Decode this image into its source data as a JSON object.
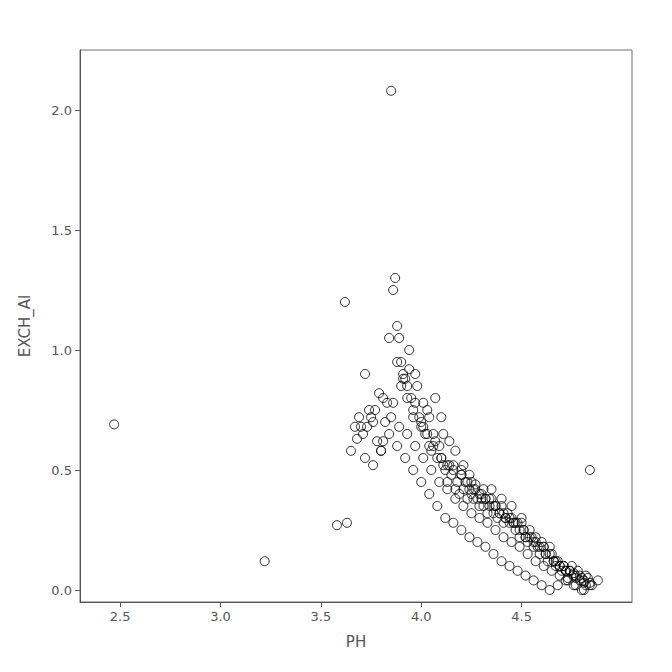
{
  "chart_data": {
    "type": "scatter",
    "xlabel": "PH",
    "ylabel": "EXCH_Al",
    "xlim": [
      2.3,
      5.05
    ],
    "ylim": [
      -0.05,
      2.25
    ],
    "xticks": [
      2.5,
      {
        "value": 3.0,
        "label": "3.0"
      },
      3.5,
      {
        "value": 4.0,
        "label": "4.0"
      },
      4.5
    ],
    "yticks": [
      {
        "value": 0.0,
        "label": "0.0"
      },
      0.5,
      {
        "value": 1.0,
        "label": "1.0"
      },
      1.5,
      {
        "value": 2.0,
        "label": "2.0"
      }
    ],
    "grid": false,
    "color": "black",
    "marker": "circle",
    "x": [
      2.47,
      3.22,
      3.58,
      3.63,
      3.68,
      3.7,
      3.72,
      3.75,
      3.78,
      3.8,
      3.82,
      3.83,
      3.85,
      3.86,
      3.87,
      3.88,
      3.89,
      3.9,
      3.91,
      3.92,
      3.93,
      3.94,
      3.95,
      3.96,
      3.97,
      3.98,
      3.99,
      4.0,
      4.01,
      4.02,
      4.03,
      4.04,
      4.05,
      4.06,
      4.07,
      4.08,
      4.09,
      4.1,
      4.1,
      4.11,
      4.12,
      4.13,
      4.14,
      4.15,
      4.16,
      4.17,
      4.18,
      4.19,
      4.2,
      4.2,
      4.21,
      4.22,
      4.23,
      4.24,
      4.25,
      4.25,
      4.26,
      4.27,
      4.28,
      4.29,
      4.3,
      4.3,
      4.31,
      4.32,
      4.33,
      4.34,
      4.35,
      4.35,
      4.36,
      4.37,
      4.38,
      4.39,
      4.4,
      4.4,
      4.41,
      4.42,
      4.43,
      4.44,
      4.45,
      4.45,
      4.46,
      4.47,
      4.48,
      4.49,
      4.5,
      4.5,
      4.51,
      4.52,
      4.53,
      4.54,
      4.55,
      4.56,
      4.57,
      4.58,
      4.59,
      4.6,
      4.61,
      4.62,
      4.63,
      4.64,
      4.65,
      4.66,
      4.67,
      4.68,
      4.69,
      4.7,
      4.71,
      4.72,
      4.73,
      4.74,
      4.75,
      4.76,
      4.77,
      4.78,
      4.79,
      4.8,
      4.81,
      4.82,
      4.83,
      4.84,
      3.62,
      3.67,
      3.74,
      3.79,
      3.84,
      3.88,
      3.91,
      3.94,
      3.97,
      4.01,
      4.04,
      4.07,
      4.11,
      4.14,
      4.17,
      4.21,
      4.24,
      4.27,
      4.31,
      4.34,
      4.37,
      4.41,
      4.44,
      4.47,
      4.51,
      4.54,
      4.57,
      4.61,
      4.64,
      4.67,
      4.71,
      4.74,
      4.77,
      4.81,
      4.84,
      3.65,
      3.71,
      3.76,
      3.81,
      3.86,
      3.9,
      3.93,
      3.96,
      4.0,
      4.03,
      4.06,
      4.1,
      4.13,
      4.16,
      4.2,
      4.23,
      4.26,
      4.29,
      4.32,
      4.36,
      4.39,
      4.42,
      4.46,
      4.49,
      4.52,
      4.56,
      4.59,
      4.62,
      4.66,
      4.69,
      4.72,
      4.76,
      4.79,
      4.82,
      3.69,
      3.73,
      3.77,
      3.81,
      3.85,
      3.89,
      3.93,
      3.97,
      4.01,
      4.05,
      4.09,
      4.13,
      4.17,
      4.21,
      4.25,
      4.29,
      4.33,
      4.37,
      4.41,
      4.45,
      4.49,
      4.53,
      4.57,
      4.61,
      4.65,
      4.69,
      4.73,
      4.77,
      4.81,
      4.85,
      3.72,
      3.76,
      3.8,
      3.84,
      3.88,
      3.92,
      3.96,
      4.0,
      4.04,
      4.08,
      4.12,
      4.16,
      4.2,
      4.24,
      4.28,
      4.32,
      4.36,
      4.4,
      4.44,
      4.48,
      4.52,
      4.56,
      4.6,
      4.64,
      4.68,
      4.72,
      4.76,
      4.8,
      4.84,
      4.88
    ],
    "values": [
      0.69,
      0.12,
      0.27,
      0.28,
      0.63,
      0.68,
      0.9,
      0.72,
      0.62,
      0.58,
      0.7,
      0.78,
      2.08,
      1.25,
      1.3,
      1.1,
      1.05,
      0.95,
      0.9,
      0.88,
      0.85,
      0.92,
      0.8,
      0.75,
      0.78,
      0.85,
      0.72,
      0.7,
      0.68,
      0.65,
      0.75,
      0.6,
      0.58,
      0.65,
      0.62,
      0.55,
      0.6,
      0.72,
      0.55,
      0.52,
      0.5,
      0.45,
      0.52,
      0.48,
      0.52,
      0.42,
      0.45,
      0.4,
      0.5,
      0.48,
      0.42,
      0.45,
      0.38,
      0.42,
      0.4,
      0.45,
      0.38,
      0.42,
      0.38,
      0.35,
      0.4,
      0.38,
      0.35,
      0.38,
      0.32,
      0.35,
      0.38,
      0.42,
      0.32,
      0.35,
      0.3,
      0.32,
      0.35,
      0.38,
      0.28,
      0.3,
      0.32,
      0.28,
      0.3,
      0.35,
      0.28,
      0.25,
      0.28,
      0.22,
      0.3,
      0.28,
      0.25,
      0.22,
      0.2,
      0.25,
      0.22,
      0.18,
      0.22,
      0.18,
      0.15,
      0.2,
      0.18,
      0.15,
      0.12,
      0.18,
      0.15,
      0.12,
      0.1,
      0.12,
      0.1,
      0.08,
      0.1,
      0.08,
      0.05,
      0.08,
      0.1,
      0.07,
      0.05,
      0.08,
      0.06,
      0.05,
      0.03,
      0.06,
      0.05,
      0.03,
      1.2,
      0.68,
      0.75,
      0.82,
      1.05,
      0.95,
      0.88,
      1.0,
      0.9,
      0.78,
      0.72,
      0.8,
      0.65,
      0.62,
      0.58,
      0.52,
      0.48,
      0.44,
      0.42,
      0.38,
      0.35,
      0.32,
      0.3,
      0.28,
      0.25,
      0.22,
      0.2,
      0.18,
      0.15,
      0.12,
      0.1,
      0.08,
      0.06,
      0.04,
      0.5,
      0.58,
      0.65,
      0.7,
      0.62,
      0.78,
      0.85,
      0.8,
      0.72,
      0.68,
      0.65,
      0.6,
      0.55,
      0.52,
      0.5,
      0.48,
      0.45,
      0.42,
      0.4,
      0.38,
      0.35,
      0.32,
      0.3,
      0.28,
      0.25,
      0.22,
      0.2,
      0.18,
      0.15,
      0.12,
      0.1,
      0.08,
      0.06,
      0.04,
      0.02,
      0.72,
      0.68,
      0.75,
      0.8,
      0.72,
      0.68,
      0.65,
      0.6,
      0.55,
      0.5,
      0.45,
      0.42,
      0.38,
      0.35,
      0.32,
      0.3,
      0.28,
      0.25,
      0.22,
      0.2,
      0.18,
      0.15,
      0.12,
      0.1,
      0.08,
      0.06,
      0.04,
      0.02,
      0.0,
      0.02,
      0.55,
      0.52,
      0.58,
      0.65,
      0.6,
      0.55,
      0.5,
      0.45,
      0.4,
      0.35,
      0.3,
      0.28,
      0.25,
      0.22,
      0.2,
      0.18,
      0.15,
      0.12,
      0.1,
      0.08,
      0.06,
      0.04,
      0.02,
      0.0,
      0.02,
      0.04,
      0.02,
      0.0,
      0.02,
      0.04
    ]
  }
}
